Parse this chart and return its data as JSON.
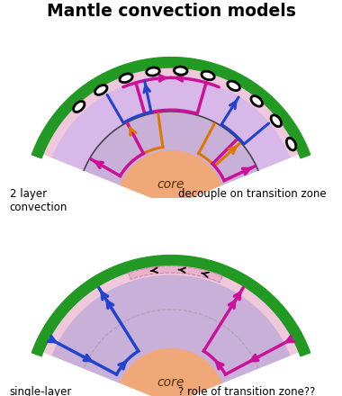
{
  "title": "Mantle convection models",
  "background_color": "#ffffff",
  "mantle_color": "#c8b0d8",
  "core_color": "#f0a878",
  "outer_green": "#229922",
  "pink_band": "#f0c8dc",
  "blue": "#2244cc",
  "magenta": "#cc1199",
  "orange": "#dd7700",
  "core_label": "core",
  "label1_left": "2 layer\nconvection",
  "label1_right": "decouple on transition zone",
  "label2_left": "single-layer\nconvection",
  "label2_right": "? role of transition zone??"
}
